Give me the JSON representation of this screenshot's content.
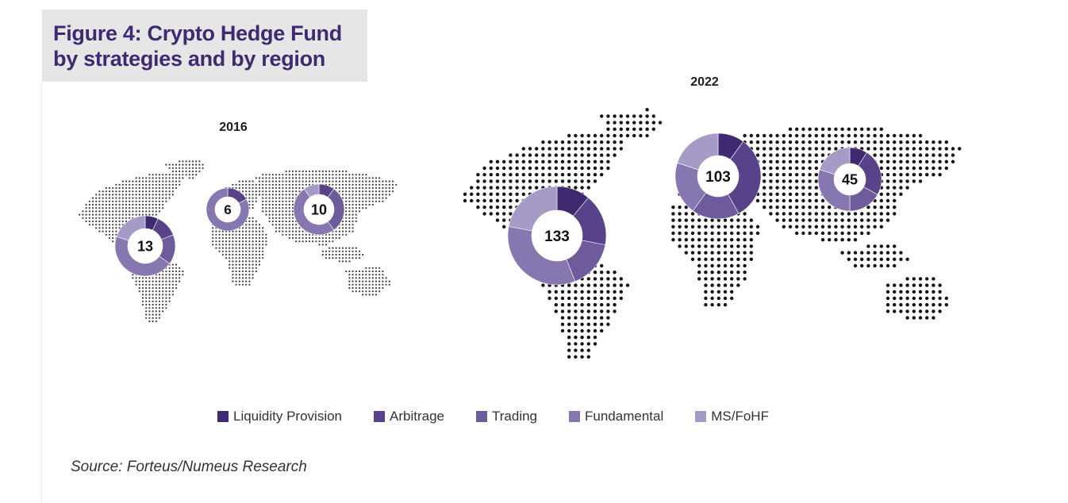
{
  "figure": {
    "title_line1": "Figure 4: Crypto Hedge Fund",
    "title_line2": "by strategies and by region",
    "source": "Source: Forteus/Numeus Research"
  },
  "colors": {
    "title": "#3f2a72",
    "map_dots_2016": "#3a3a3a",
    "map_dots_2022": "#141414"
  },
  "chart_data": [
    {
      "type": "pie",
      "variant": "donut",
      "year": "2016",
      "donuts": [
        {
          "region": "North America",
          "total": 13,
          "shares": [
            0.07,
            0.12,
            0.16,
            0.45,
            0.2
          ]
        },
        {
          "region": "Europe",
          "total": 6,
          "shares": [
            0.0,
            0.17,
            0.0,
            0.83,
            0.0
          ]
        },
        {
          "region": "Asia",
          "total": 10,
          "shares": [
            0.0,
            0.1,
            0.3,
            0.5,
            0.1
          ]
        }
      ]
    },
    {
      "type": "pie",
      "variant": "donut",
      "year": "2022",
      "donuts": [
        {
          "region": "North America",
          "total": 133,
          "shares": [
            0.11,
            0.17,
            0.16,
            0.34,
            0.22
          ]
        },
        {
          "region": "Europe",
          "total": 103,
          "shares": [
            0.1,
            0.32,
            0.18,
            0.2,
            0.2
          ]
        },
        {
          "region": "Asia",
          "total": 45,
          "shares": [
            0.09,
            0.24,
            0.17,
            0.3,
            0.2
          ]
        }
      ]
    }
  ],
  "legend": {
    "items": [
      {
        "label": "Liquidity Provision",
        "color": "#3f2a72"
      },
      {
        "label": "Arbitrage",
        "color": "#58438a"
      },
      {
        "label": "Trading",
        "color": "#6d5b9c"
      },
      {
        "label": "Fundamental",
        "color": "#8777b0"
      },
      {
        "label": "MS/FoHF",
        "color": "#a69bc6"
      }
    ]
  }
}
